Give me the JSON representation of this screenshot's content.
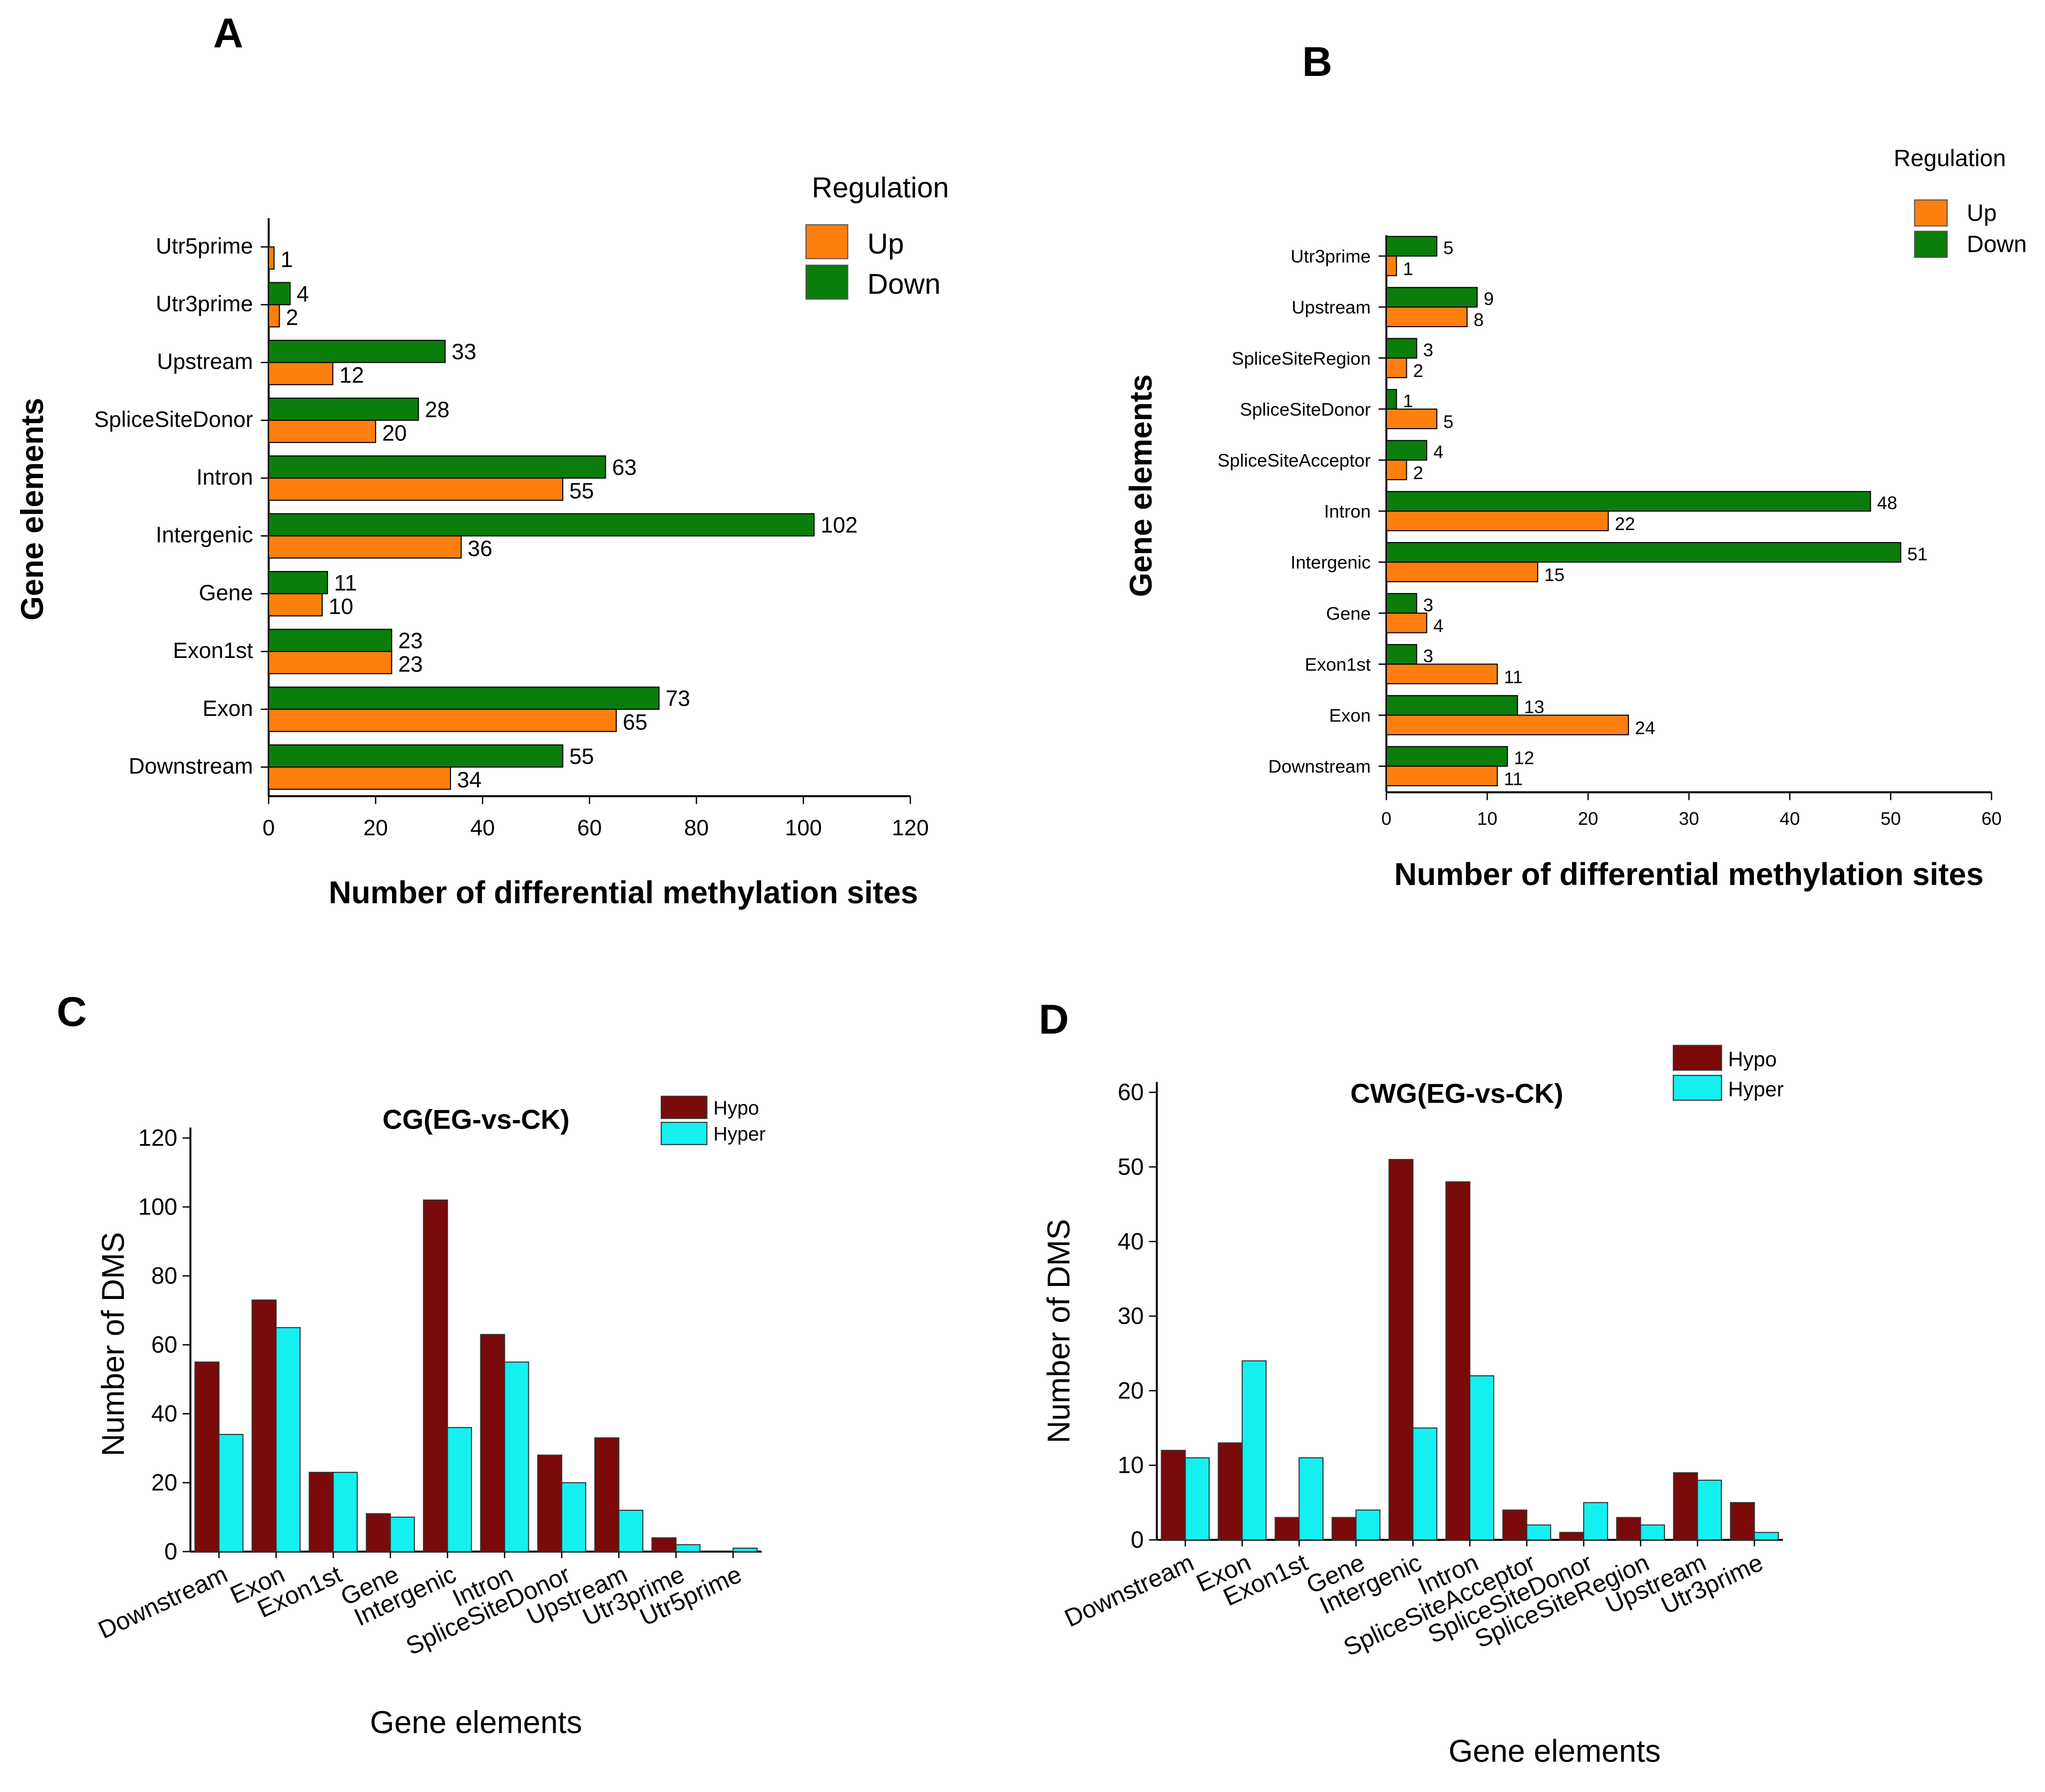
{
  "chart_data": [
    {
      "id": "A",
      "type": "bar",
      "orientation": "horizontal",
      "panel_label": "A",
      "title": "",
      "xlabel": "Number of differential methylation sites",
      "ylabel": "Gene elements",
      "legend_title": "Regulation",
      "legend_placement": "top-right",
      "categories": [
        "Utr5prime",
        "Utr3prime",
        "Upstream",
        "SpliceSiteDonor",
        "Intron",
        "Intergenic",
        "Gene",
        "Exon1st",
        "Exon",
        "Downstream"
      ],
      "series": [
        {
          "name": "Up",
          "color": "#FF7F0E",
          "values": [
            1,
            2,
            12,
            20,
            55,
            36,
            10,
            23,
            65,
            34
          ]
        },
        {
          "name": "Down",
          "color": "#0A7D0A",
          "values": [
            0,
            4,
            33,
            28,
            63,
            102,
            11,
            23,
            73,
            55
          ]
        }
      ],
      "xlim": [
        0,
        120
      ],
      "xticks": [
        0,
        20,
        40,
        60,
        80,
        100,
        120
      ]
    },
    {
      "id": "B",
      "type": "bar",
      "orientation": "horizontal",
      "panel_label": "B",
      "title": "",
      "xlabel": "Number of differential methylation sites",
      "ylabel": "Gene elements",
      "legend_title": "Regulation",
      "legend_placement": "top-right",
      "categories": [
        "Utr3prime",
        "Upstream",
        "SpliceSiteRegion",
        "SpliceSiteDonor",
        "SpliceSiteAcceptor",
        "Intron",
        "Intergenic",
        "Gene",
        "Exon1st",
        "Exon",
        "Downstream"
      ],
      "series": [
        {
          "name": "Up",
          "color": "#FF7F0E",
          "values": [
            1,
            8,
            2,
            5,
            2,
            22,
            15,
            4,
            11,
            24,
            11
          ]
        },
        {
          "name": "Down",
          "color": "#0A7D0A",
          "values": [
            5,
            9,
            3,
            1,
            4,
            48,
            51,
            3,
            3,
            13,
            12
          ]
        }
      ],
      "xlim": [
        0,
        60
      ],
      "xticks": [
        0,
        10,
        20,
        30,
        40,
        50,
        60
      ]
    },
    {
      "id": "C",
      "type": "bar",
      "orientation": "vertical",
      "panel_label": "C",
      "title": "CG(EG-vs-CK)",
      "xlabel": "Gene elements",
      "ylabel": "Number of DMS",
      "legend_placement": "top-right",
      "categories": [
        "Downstream",
        "Exon",
        "Exon1st",
        "Gene",
        "Intergenic",
        "Intron",
        "SpliceSiteDonor",
        "Upstream",
        "Utr3prime",
        "Utr5prime"
      ],
      "series": [
        {
          "name": "Hypo",
          "color": "#7B0A0A",
          "values": [
            55,
            73,
            23,
            11,
            102,
            63,
            28,
            33,
            4,
            0
          ]
        },
        {
          "name": "Hyper",
          "color": "#14F0F0",
          "values": [
            34,
            65,
            23,
            10,
            36,
            55,
            20,
            12,
            2,
            1
          ]
        }
      ],
      "ylim": [
        0,
        120
      ],
      "yticks": [
        0,
        20,
        40,
        60,
        80,
        100,
        120
      ]
    },
    {
      "id": "D",
      "type": "bar",
      "orientation": "vertical",
      "panel_label": "D",
      "title": "CWG(EG-vs-CK)",
      "xlabel": "Gene elements",
      "ylabel": "Number of DMS",
      "legend_placement": "top-right",
      "categories": [
        "Downstream",
        "Exon",
        "Exon1st",
        "Gene",
        "Intergenic",
        "Intron",
        "SpliceSiteAcceptor",
        "SpliceSiteDonor",
        "SpliceSiteRegion",
        "Upstream",
        "Utr3prime"
      ],
      "series": [
        {
          "name": "Hypo",
          "color": "#7B0A0A",
          "values": [
            12,
            13,
            3,
            3,
            51,
            48,
            4,
            1,
            3,
            9,
            5
          ]
        },
        {
          "name": "Hyper",
          "color": "#14F0F0",
          "values": [
            11,
            24,
            11,
            4,
            15,
            22,
            2,
            5,
            2,
            8,
            1
          ]
        }
      ],
      "ylim": [
        0,
        60
      ],
      "yticks": [
        0,
        10,
        20,
        30,
        40,
        50,
        60
      ]
    }
  ]
}
